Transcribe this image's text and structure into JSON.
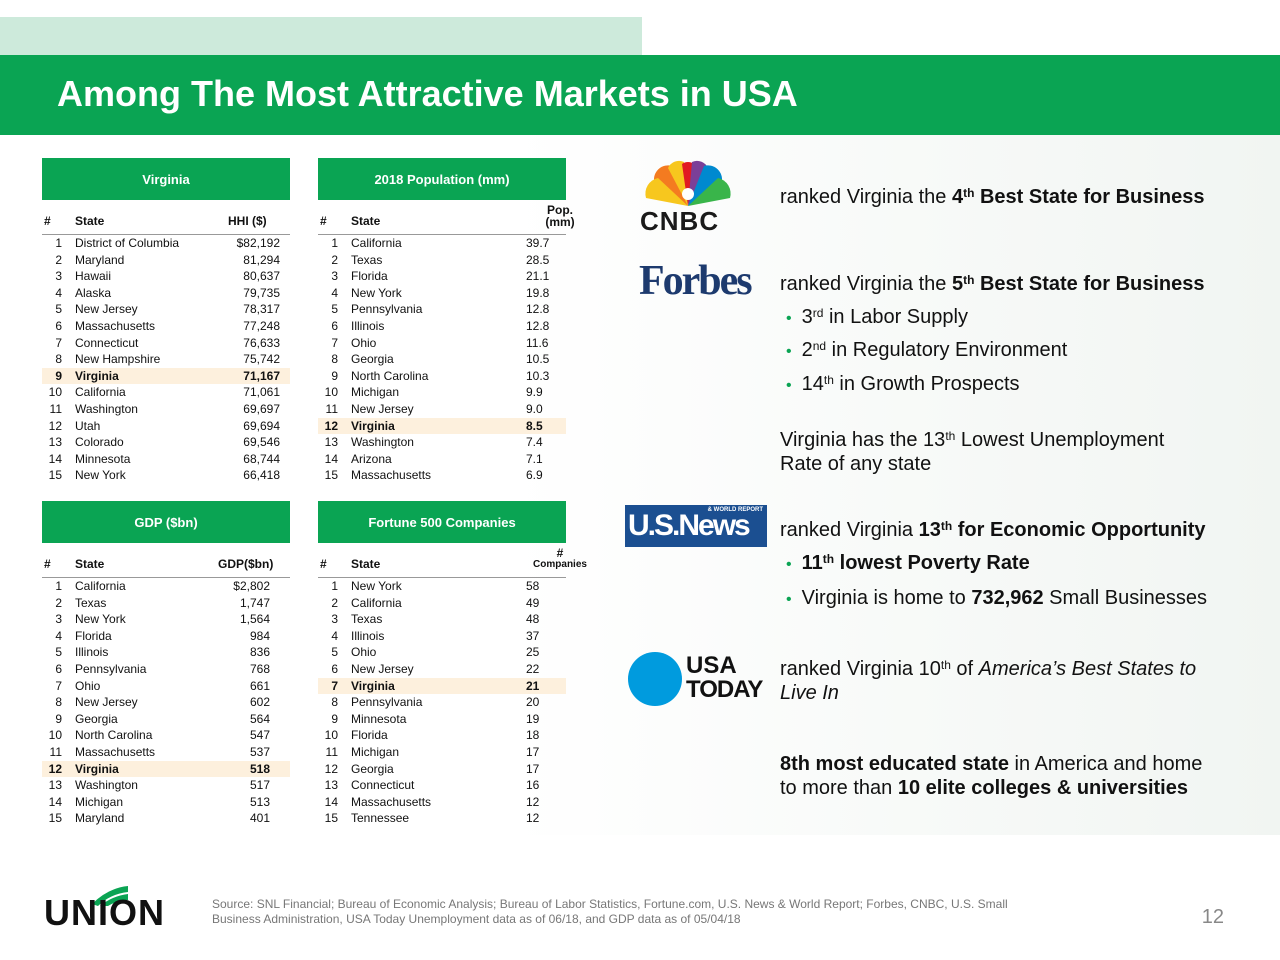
{
  "title": "Among The Most Attractive Markets in USA",
  "tables": {
    "hhi": {
      "header": "Virginia",
      "cols": [
        "#",
        "State",
        "HHI ($)"
      ],
      "rows": [
        [
          "1",
          "District of Columbia",
          "$82,192"
        ],
        [
          "2",
          "Maryland",
          "81,294"
        ],
        [
          "3",
          "Hawaii",
          "80,637"
        ],
        [
          "4",
          "Alaska",
          "79,735"
        ],
        [
          "5",
          "New Jersey",
          "78,317"
        ],
        [
          "6",
          "Massachusetts",
          "77,248"
        ],
        [
          "7",
          "Connecticut",
          "76,633"
        ],
        [
          "8",
          "New Hampshire",
          "75,742"
        ],
        [
          "9",
          "Virginia",
          "71,167"
        ],
        [
          "10",
          "California",
          "71,061"
        ],
        [
          "11",
          "Washington",
          "69,697"
        ],
        [
          "12",
          "Utah",
          "69,694"
        ],
        [
          "13",
          "Colorado",
          "69,546"
        ],
        [
          "14",
          "Minnesota",
          "68,744"
        ],
        [
          "15",
          "New York",
          "66,418"
        ]
      ],
      "highlight": 8
    },
    "pop": {
      "header": "2018 Population (mm)",
      "cols": [
        "#",
        "State",
        "Pop. (mm)"
      ],
      "rows": [
        [
          "1",
          "California",
          "39.7"
        ],
        [
          "2",
          "Texas",
          "28.5"
        ],
        [
          "3",
          "Florida",
          "21.1"
        ],
        [
          "4",
          "New York",
          "19.8"
        ],
        [
          "5",
          "Pennsylvania",
          "12.8"
        ],
        [
          "6",
          "Illinois",
          "12.8"
        ],
        [
          "7",
          "Ohio",
          "11.6"
        ],
        [
          "8",
          "Georgia",
          "10.5"
        ],
        [
          "9",
          "North Carolina",
          "10.3"
        ],
        [
          "10",
          "Michigan",
          "9.9"
        ],
        [
          "11",
          "New Jersey",
          "9.0"
        ],
        [
          "12",
          "Virginia",
          "8.5"
        ],
        [
          "13",
          "Washington",
          "7.4"
        ],
        [
          "14",
          "Arizona",
          "7.1"
        ],
        [
          "15",
          "Massachusetts",
          "6.9"
        ]
      ],
      "highlight": 11
    },
    "gdp": {
      "header": "GDP ($bn)",
      "cols": [
        "#",
        "State",
        "GDP($bn)"
      ],
      "rows": [
        [
          "1",
          "California",
          "$2,802"
        ],
        [
          "2",
          "Texas",
          "1,747"
        ],
        [
          "3",
          "New York",
          "1,564"
        ],
        [
          "4",
          "Florida",
          "984"
        ],
        [
          "5",
          "Illinois",
          "836"
        ],
        [
          "6",
          "Pennsylvania",
          "768"
        ],
        [
          "7",
          "Ohio",
          "661"
        ],
        [
          "8",
          "New Jersey",
          "602"
        ],
        [
          "9",
          "Georgia",
          "564"
        ],
        [
          "10",
          "North Carolina",
          "547"
        ],
        [
          "11",
          "Massachusetts",
          "537"
        ],
        [
          "12",
          "Virginia",
          "518"
        ],
        [
          "13",
          "Washington",
          "517"
        ],
        [
          "14",
          "Michigan",
          "513"
        ],
        [
          "15",
          "Maryland",
          "401"
        ]
      ],
      "highlight": 11
    },
    "fortune": {
      "header": "Fortune 500 Companies",
      "cols": [
        "#",
        "State",
        "# Companies"
      ],
      "rows": [
        [
          "1",
          "New York",
          "58"
        ],
        [
          "2",
          "California",
          "49"
        ],
        [
          "3",
          "Texas",
          "48"
        ],
        [
          "4",
          "Illinois",
          "37"
        ],
        [
          "5",
          "Ohio",
          "25"
        ],
        [
          "6",
          "New Jersey",
          "22"
        ],
        [
          "7",
          "Virginia",
          "21"
        ],
        [
          "8",
          "Pennsylvania",
          "20"
        ],
        [
          "9",
          "Minnesota",
          "19"
        ],
        [
          "10",
          "Florida",
          "18"
        ],
        [
          "11",
          "Michigan",
          "17"
        ],
        [
          "12",
          "Georgia",
          "17"
        ],
        [
          "13",
          "Connecticut",
          "16"
        ],
        [
          "14",
          "Massachusetts",
          "12"
        ],
        [
          "15",
          "Tennessee",
          "12"
        ]
      ],
      "highlight": 6
    }
  },
  "rankings": {
    "cnbc": {
      "logo": "CNBC",
      "pre": "ranked Virginia the ",
      "num": "4",
      "sup": "th",
      "bold": " Best State for Business"
    },
    "forbes": {
      "logo": "Forbes",
      "pre": "ranked Virginia the ",
      "num": "5",
      "sup": "th",
      "bold": " Best State for Business",
      "b1_num": "3",
      "b1_sup": "rd",
      "b1_text": " in Labor Supply",
      "b2_num": "2",
      "b2_sup": "nd",
      "b2_text": " in Regulatory Environment",
      "b3_num": "14",
      "b3_sup": "th",
      "b3_text": " in Growth Prospects",
      "unemp1_pre": "Virginia has the 13",
      "unemp1_sup": "th",
      "unemp1_post": " Lowest Unemployment",
      "unemp2": "Rate of any state"
    },
    "usnews": {
      "logo": "U.S.News",
      "logo_small": "& WORLD REPORT",
      "pre": "ranked Virginia ",
      "num": "13",
      "sup": "th",
      "bold": " for Economic Opportunity",
      "b1_num": "11",
      "b1_sup": "th",
      "b1_text": " lowest Poverty Rate",
      "b2_pre": "Virginia is home to ",
      "b2_bold": "732,962",
      "b2_post": " Small Businesses"
    },
    "usatoday": {
      "logo1": "USA",
      "logo2": "TODAY",
      "pre": "ranked Virginia 10",
      "sup": "th",
      "mid": " of ",
      "ital1": "America’s Best States to",
      "ital2": "Live In"
    },
    "education": {
      "bold1": "8th most educated state",
      "post1": " in America and home",
      "pre2": "to more than ",
      "bold2": "10 elite colleges & universities"
    }
  },
  "footer": {
    "logo": "UNION",
    "source1": "Source: SNL Financial; Bureau of Economic Analysis; Bureau of Labor Statistics, Fortune.com, U.S. News & World Report; Forbes, CNBC, U.S. Small",
    "source2": "Business Administration, USA Today Unemployment data as of 06/18, and GDP data as of 05/04/18",
    "page": "12"
  },
  "colors": {
    "brand_green": "#0aa453",
    "highlight": "#fdf0dd"
  }
}
